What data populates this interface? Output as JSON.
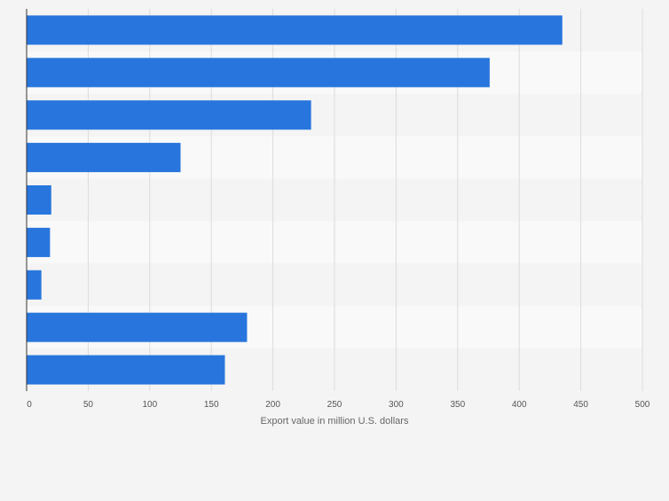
{
  "chart_data": {
    "type": "bar",
    "orientation": "horizontal",
    "categories": [
      "",
      "",
      "",
      "",
      "",
      "",
      "",
      "",
      ""
    ],
    "series": [
      {
        "values": [
          435,
          376,
          231,
          125,
          20,
          19,
          12,
          179,
          161
        ]
      }
    ],
    "xlabel": "Export value in million U.S. dollars",
    "ylabel": "",
    "xlim": [
      0,
      500
    ],
    "xticks": [
      0,
      50,
      100,
      150,
      200,
      250,
      300,
      350,
      400,
      450,
      500
    ],
    "grid": true,
    "bar_color": "#2876dd",
    "band_colors": [
      "#f4f4f4",
      "#f9f9f9"
    ]
  }
}
